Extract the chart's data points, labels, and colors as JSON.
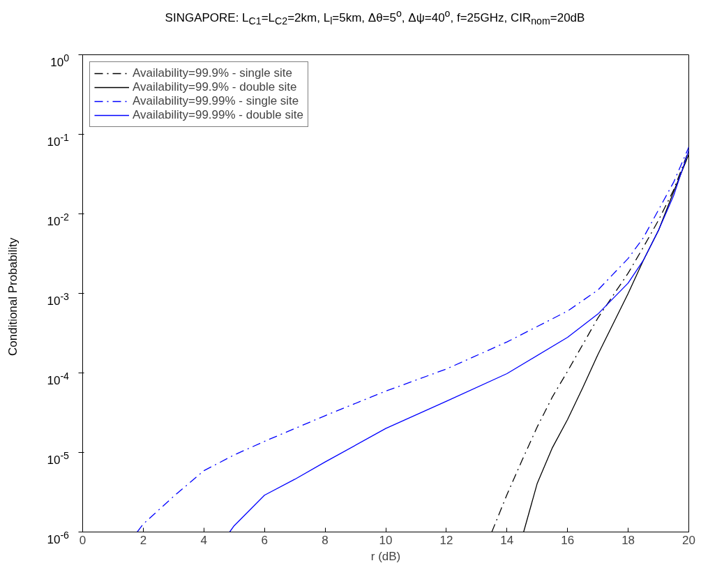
{
  "chart_data": {
    "type": "line",
    "title": "SINGAPORE: L$_{C1}$=L$_{C2}$=2km, L$_{l}$=5km, Δθ=5$^{o}$, Δψ=40$^{o}$, f=25GHz, CIR$_{nom}$=20dB",
    "xlabel": "r (dB)",
    "ylabel": "Conditional Probability",
    "log": "y",
    "grid": false,
    "legend": "top left",
    "xlim": [
      0,
      20
    ],
    "xticks": [
      0,
      2,
      4,
      6,
      8,
      10,
      12,
      14,
      16,
      18,
      20
    ],
    "ylim": [
      1e-06,
      1
    ],
    "yticks": [
      {
        "value": 1e-06,
        "label": "10$^{-6}$"
      },
      {
        "value": 1e-05,
        "label": "10$^{-5}$"
      },
      {
        "value": 0.0001,
        "label": "10$^{-4}$"
      },
      {
        "value": 0.001,
        "label": "10$^{-3}$"
      },
      {
        "value": 0.01,
        "label": "10$^{-2}$"
      },
      {
        "value": 0.1,
        "label": "10$^{-1}$"
      },
      {
        "value": 1,
        "label": "10$^{0}$"
      }
    ],
    "series": [
      {
        "name": "Availability=99.9% - single site",
        "color": "#000000",
        "line_style": "dashdot",
        "x": [
          13.5,
          14,
          14.5,
          15,
          15.5,
          16,
          17,
          18,
          18.5,
          19,
          19.5,
          20
        ],
        "values": [
          1e-06,
          2.95e-06,
          8e-06,
          2.1e-05,
          5e-05,
          0.000105,
          0.00049,
          0.0018,
          0.0038,
          0.0083,
          0.02,
          0.063
        ]
      },
      {
        "name": "Availability=99.9% - double site",
        "color": "#000000",
        "line_style": "solid",
        "x": [
          14.55,
          15,
          15.5,
          16,
          16.5,
          17,
          18,
          18.5,
          19,
          19.5,
          20
        ],
        "values": [
          1e-06,
          4.1e-06,
          1.15e-05,
          2.6e-05,
          6.5e-05,
          0.00017,
          0.001,
          0.0026,
          0.0062,
          0.019,
          0.056
        ]
      },
      {
        "name": "Availability=99.99% - single site",
        "color": "#0000ff",
        "line_style": "dashdot",
        "x": [
          1.8,
          2,
          3,
          4,
          5,
          6,
          7,
          8,
          10,
          12,
          14,
          16,
          17,
          18,
          18.5,
          19,
          19.5,
          20
        ],
        "values": [
          1e-06,
          1.26e-06,
          2.8e-06,
          5.9e-06,
          9.3e-06,
          1.38e-05,
          2e-05,
          2.9e-05,
          5.9e-05,
          0.000112,
          0.000245,
          0.0006,
          0.0011,
          0.00275,
          0.005,
          0.0112,
          0.025,
          0.069
        ]
      },
      {
        "name": "Availability=99.99% - double site",
        "color": "#0000ff",
        "line_style": "solid",
        "x": [
          4.85,
          5,
          6,
          7,
          8,
          10,
          12,
          14,
          16,
          17,
          18,
          18.5,
          19,
          19.5,
          20
        ],
        "values": [
          1e-06,
          1.2e-06,
          2.9e-06,
          4.6e-06,
          7.6e-06,
          2e-05,
          4.4e-05,
          9.8e-05,
          0.00028,
          0.00055,
          0.00135,
          0.0026,
          0.0062,
          0.017,
          0.063
        ]
      }
    ]
  }
}
